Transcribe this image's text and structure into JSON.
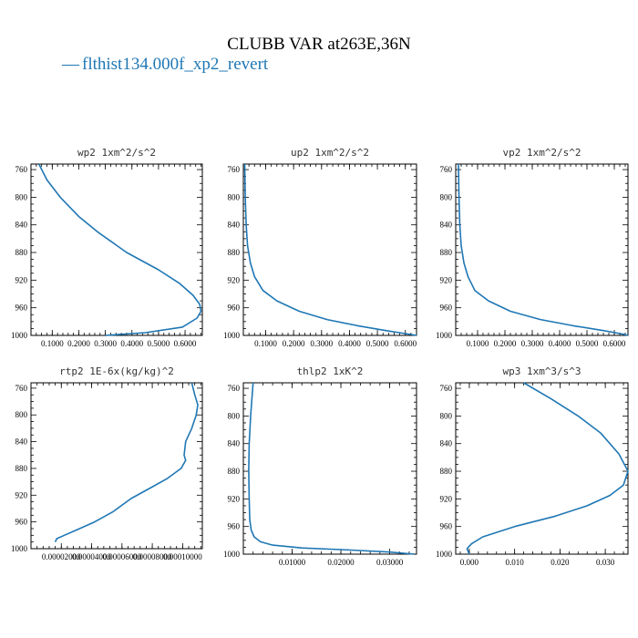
{
  "figure": {
    "title": "CLUBB VAR at263E,36N",
    "legend_label": "flthist134.000f_xp2_revert",
    "legend_marker": "—",
    "series_color": "#1f77b4"
  },
  "chart_data": [
    {
      "type": "line",
      "title": "wp2   1xm^2/s^2",
      "ylim": [
        1000,
        752
      ],
      "y_inverted": true,
      "yticks": [
        760,
        800,
        840,
        880,
        920,
        960,
        1000
      ],
      "xlim": [
        0.02,
        0.665
      ],
      "xticks": [
        0.1,
        0.2,
        0.3,
        0.4,
        0.5,
        0.6
      ],
      "xtick_labels": [
        "0.1000",
        "0.2000",
        "0.3000",
        "0.4000",
        "0.5000",
        "0.6000"
      ],
      "x": [
        0.05,
        0.08,
        0.13,
        0.2,
        0.27,
        0.38,
        0.5,
        0.58,
        0.63,
        0.655,
        0.66,
        0.645,
        0.59,
        0.45,
        0.3
      ],
      "y": [
        752,
        775,
        800,
        828,
        850,
        880,
        905,
        925,
        942,
        955,
        965,
        975,
        988,
        996,
        1000
      ]
    },
    {
      "type": "line",
      "title": "up2   1xm^2/s^2",
      "ylim": [
        1000,
        752
      ],
      "y_inverted": true,
      "yticks": [
        760,
        800,
        840,
        880,
        920,
        960,
        1000
      ],
      "xlim": [
        0.02,
        0.64
      ],
      "xticks": [
        0.1,
        0.2,
        0.3,
        0.4,
        0.5,
        0.6
      ],
      "xtick_labels": [
        "0.1000",
        "0.2000",
        "0.3000",
        "0.4000",
        "0.5000",
        "0.6000"
      ],
      "x": [
        0.025,
        0.027,
        0.03,
        0.035,
        0.045,
        0.06,
        0.09,
        0.14,
        0.22,
        0.32,
        0.43,
        0.53,
        0.61,
        0.64
      ],
      "y": [
        752,
        800,
        840,
        870,
        895,
        915,
        935,
        950,
        965,
        977,
        986,
        993,
        998,
        1000
      ]
    },
    {
      "type": "line",
      "title": "vp2   1xm^2/s^2",
      "ylim": [
        1000,
        752
      ],
      "y_inverted": true,
      "yticks": [
        760,
        800,
        840,
        880,
        920,
        960,
        1000
      ],
      "xlim": [
        0.02,
        0.65
      ],
      "xticks": [
        0.1,
        0.2,
        0.3,
        0.4,
        0.5,
        0.6
      ],
      "xtick_labels": [
        "0.1000",
        "0.2000",
        "0.3000",
        "0.4000",
        "0.5000",
        "0.6000"
      ],
      "x": [
        0.03,
        0.032,
        0.035,
        0.04,
        0.05,
        0.065,
        0.09,
        0.14,
        0.22,
        0.33,
        0.45,
        0.56,
        0.63,
        0.65
      ],
      "y": [
        752,
        800,
        840,
        870,
        895,
        915,
        935,
        950,
        965,
        977,
        986,
        993,
        998,
        1000
      ]
    },
    {
      "type": "line",
      "title": "rtp2   1E-6x(kg/kg)^2",
      "ylim": [
        1000,
        752
      ],
      "y_inverted": true,
      "yticks": [
        760,
        800,
        840,
        880,
        920,
        960,
        1000
      ],
      "xlim": [
        0.0,
        0.000113
      ],
      "xticks": [
        2e-05,
        4e-05,
        6e-05,
        8e-05,
        0.0001
      ],
      "xtick_labels": [
        "0.00002000",
        "0.00004000",
        "0.00006000",
        "0.00008000",
        "0.00010000"
      ],
      "x": [
        0.000106,
        0.000108,
        0.00011,
        0.000109,
        0.000106,
        0.000102,
        0.000101,
        0.000102,
        9.9e-05,
        9e-05,
        7.8e-05,
        6.6e-05,
        5.4e-05,
        4.2e-05,
        3e-05,
        2.2e-05,
        1.7e-05,
        1.6e-05
      ],
      "y": [
        752,
        770,
        785,
        800,
        820,
        840,
        860,
        868,
        880,
        895,
        910,
        925,
        945,
        960,
        972,
        980,
        985,
        990
      ]
    },
    {
      "type": "line",
      "title": "thlp2   1xK^2",
      "ylim": [
        1000,
        752
      ],
      "y_inverted": true,
      "yticks": [
        760,
        800,
        840,
        880,
        920,
        960,
        1000
      ],
      "xlim": [
        0.0,
        0.0355
      ],
      "xticks": [
        0.01,
        0.02,
        0.03
      ],
      "xtick_labels": [
        "0.01000",
        "0.02000",
        "0.03000"
      ],
      "x": [
        0.002,
        0.0015,
        0.0012,
        0.0011,
        0.0012,
        0.0013,
        0.0016,
        0.0022,
        0.0035,
        0.006,
        0.012,
        0.022,
        0.03,
        0.035
      ],
      "y": [
        752,
        800,
        840,
        880,
        920,
        950,
        965,
        975,
        982,
        987,
        991,
        994,
        997,
        1000
      ]
    },
    {
      "type": "line",
      "title": "wp3   1xm^3/s^3",
      "ylim": [
        1000,
        752
      ],
      "y_inverted": true,
      "yticks": [
        760,
        800,
        840,
        880,
        920,
        960,
        1000
      ],
      "xlim": [
        -0.003,
        0.035
      ],
      "xticks": [
        0.0,
        0.01,
        0.02,
        0.03
      ],
      "xtick_labels": [
        "0.000",
        "0.010",
        "0.020",
        "0.030"
      ],
      "x": [
        0.012,
        0.018,
        0.024,
        0.029,
        0.033,
        0.035,
        0.034,
        0.031,
        0.026,
        0.019,
        0.01,
        0.003,
        0.0005,
        -0.0005,
        0.0
      ],
      "y": [
        752,
        775,
        800,
        825,
        855,
        880,
        900,
        915,
        930,
        945,
        960,
        975,
        985,
        992,
        1000
      ]
    }
  ]
}
